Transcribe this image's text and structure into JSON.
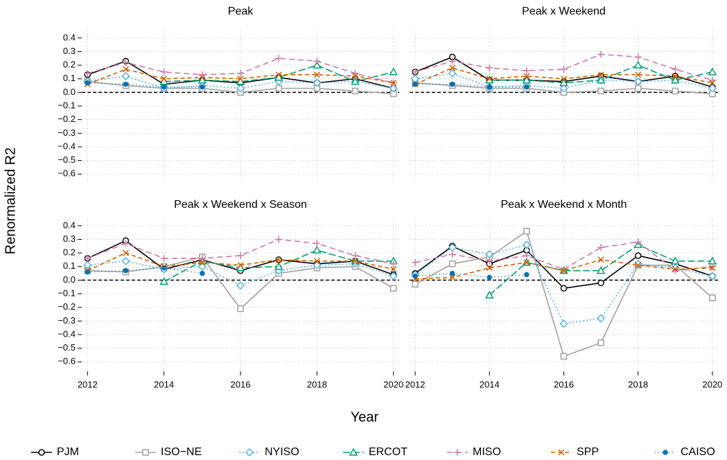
{
  "xlabel": "Year",
  "ylabel": "Renormalized R2",
  "chart_data": [
    {
      "type": "line",
      "title": "Peak",
      "x": [
        2012,
        2013,
        2014,
        2015,
        2016,
        2017,
        2018,
        2019,
        2020
      ],
      "xlim": [
        2011.85,
        2020.15
      ],
      "xticks": [
        2012,
        2014,
        2016,
        2018,
        2020
      ],
      "ylim": [
        -0.67,
        0.45
      ],
      "yticks": [
        {
          "value": -0.6,
          "label": "−0.6"
        },
        {
          "value": -0.5,
          "label": "−0.5"
        },
        {
          "value": -0.4,
          "label": "−0.4"
        },
        {
          "value": -0.3,
          "label": "−0.3"
        },
        {
          "value": -0.2,
          "label": "−0.2"
        },
        {
          "value": -0.1,
          "label": "−0.1"
        },
        {
          "value": 0,
          "label": "0.0"
        },
        0.1,
        0.2,
        0.3,
        0.4
      ],
      "grid": true,
      "series": [
        {
          "name": "PJM",
          "color": "#000000",
          "values": [
            0.13,
            0.23,
            0.06,
            0.09,
            0.07,
            0.11,
            0.07,
            0.1,
            0.03
          ]
        },
        {
          "name": "ISO−NE",
          "color": "#a0a0a0",
          "values": [
            0.08,
            0.05,
            0.03,
            0.03,
            0.0,
            0.03,
            0.03,
            0.01,
            -0.01
          ]
        },
        {
          "name": "NYISO",
          "color": "#56b4e9",
          "values": [
            0.08,
            0.12,
            0.03,
            0.05,
            0.03,
            0.08,
            0.07,
            0.08,
            0.03
          ]
        },
        {
          "name": "ERCOT",
          "color": "#009e73",
          "values": [
            null,
            null,
            0.08,
            0.09,
            0.08,
            0.11,
            0.2,
            0.08,
            0.15
          ]
        },
        {
          "name": "MISO",
          "color": "#cc79a7",
          "values": [
            0.14,
            0.22,
            0.15,
            0.13,
            0.14,
            0.25,
            0.23,
            0.14,
            0.07
          ]
        },
        {
          "name": "SPP",
          "color": "#d55e00",
          "values": [
            0.06,
            0.17,
            0.1,
            0.11,
            0.1,
            0.13,
            0.13,
            0.12,
            0.07
          ]
        },
        {
          "name": "CAISO",
          "color": "#0072b2",
          "values": [
            0.07,
            0.06,
            0.04,
            0.04,
            null,
            null,
            null,
            null,
            null
          ]
        }
      ]
    },
    {
      "type": "line",
      "title": "Peak x Weekend",
      "x": [
        2012,
        2013,
        2014,
        2015,
        2016,
        2017,
        2018,
        2019,
        2020
      ],
      "xlim": [
        2011.85,
        2020.15
      ],
      "xticks": [
        2012,
        2014,
        2016,
        2018,
        2020
      ],
      "ylim": [
        -0.67,
        0.45
      ],
      "yticks": [
        {
          "value": -0.6,
          "label": "−0.6"
        },
        {
          "value": -0.5,
          "label": "−0.5"
        },
        {
          "value": -0.4,
          "label": "−0.4"
        },
        {
          "value": -0.3,
          "label": "−0.3"
        },
        {
          "value": -0.2,
          "label": "−0.2"
        },
        {
          "value": -0.1,
          "label": "−0.1"
        },
        {
          "value": 0,
          "label": "0.0"
        },
        0.1,
        0.2,
        0.3,
        0.4
      ],
      "grid": true,
      "series": [
        {
          "name": "PJM",
          "color": "#000000",
          "values": [
            0.15,
            0.26,
            0.09,
            0.09,
            0.08,
            0.12,
            0.08,
            0.12,
            0.04
          ]
        },
        {
          "name": "ISO−NE",
          "color": "#a0a0a0",
          "values": [
            0.07,
            0.05,
            0.03,
            0.03,
            0.0,
            0.01,
            0.03,
            0.01,
            -0.01
          ]
        },
        {
          "name": "NYISO",
          "color": "#56b4e9",
          "values": [
            0.1,
            0.14,
            0.04,
            0.05,
            0.03,
            0.09,
            0.08,
            0.09,
            0.03
          ]
        },
        {
          "name": "ERCOT",
          "color": "#009e73",
          "values": [
            null,
            null,
            0.09,
            0.09,
            0.07,
            0.09,
            0.2,
            0.09,
            0.15
          ]
        },
        {
          "name": "MISO",
          "color": "#cc79a7",
          "values": [
            0.15,
            0.23,
            0.18,
            0.16,
            0.17,
            0.28,
            0.26,
            0.17,
            0.09
          ]
        },
        {
          "name": "SPP",
          "color": "#d55e00",
          "values": [
            0.06,
            0.18,
            0.1,
            0.12,
            0.1,
            0.13,
            0.13,
            0.12,
            0.07
          ]
        },
        {
          "name": "CAISO",
          "color": "#0072b2",
          "values": [
            0.06,
            0.06,
            0.04,
            0.04,
            null,
            null,
            null,
            null,
            null
          ]
        }
      ]
    },
    {
      "type": "line",
      "title": "Peak x Weekend x Season",
      "x": [
        2012,
        2013,
        2014,
        2015,
        2016,
        2017,
        2018,
        2019,
        2020
      ],
      "xlim": [
        2011.85,
        2020.15
      ],
      "xticks": [
        2012,
        2014,
        2016,
        2018,
        2020
      ],
      "ylim": [
        -0.67,
        0.45
      ],
      "yticks": [
        {
          "value": -0.6,
          "label": "−0.6"
        },
        {
          "value": -0.5,
          "label": "−0.5"
        },
        {
          "value": -0.4,
          "label": "−0.4"
        },
        {
          "value": -0.3,
          "label": "−0.3"
        },
        {
          "value": -0.2,
          "label": "−0.2"
        },
        {
          "value": -0.1,
          "label": "−0.1"
        },
        {
          "value": 0,
          "label": "0.0"
        },
        0.1,
        0.2,
        0.3,
        0.4
      ],
      "grid": true,
      "series": [
        {
          "name": "PJM",
          "color": "#000000",
          "values": [
            0.16,
            0.29,
            0.08,
            0.15,
            0.07,
            0.15,
            0.12,
            0.14,
            0.04
          ]
        },
        {
          "name": "ISO−NE",
          "color": "#a0a0a0",
          "values": [
            0.07,
            0.06,
            0.1,
            0.17,
            -0.21,
            0.05,
            0.09,
            0.1,
            -0.06
          ]
        },
        {
          "name": "NYISO",
          "color": "#56b4e9",
          "values": [
            0.11,
            0.14,
            0.08,
            0.1,
            -0.04,
            0.07,
            0.11,
            0.12,
            0.03
          ]
        },
        {
          "name": "ERCOT",
          "color": "#009e73",
          "values": [
            null,
            null,
            -0.01,
            0.14,
            0.09,
            0.1,
            0.22,
            0.14,
            0.14
          ]
        },
        {
          "name": "MISO",
          "color": "#cc79a7",
          "values": [
            0.16,
            0.27,
            0.16,
            0.16,
            0.18,
            0.3,
            0.27,
            0.18,
            0.12
          ]
        },
        {
          "name": "SPP",
          "color": "#d55e00",
          "values": [
            0.07,
            0.2,
            0.1,
            0.13,
            0.11,
            0.15,
            0.14,
            0.14,
            0.08
          ]
        },
        {
          "name": "CAISO",
          "color": "#0072b2",
          "values": [
            0.06,
            0.07,
            0.09,
            0.05,
            null,
            null,
            null,
            null,
            null
          ]
        }
      ]
    },
    {
      "type": "line",
      "title": "Peak x Weekend x Month",
      "x": [
        2012,
        2013,
        2014,
        2015,
        2016,
        2017,
        2018,
        2019,
        2020
      ],
      "xlim": [
        2011.85,
        2020.15
      ],
      "xticks": [
        2012,
        2014,
        2016,
        2018,
        2020
      ],
      "ylim": [
        -0.67,
        0.45
      ],
      "yticks": [
        {
          "value": -0.6,
          "label": "−0.6"
        },
        {
          "value": -0.5,
          "label": "−0.5"
        },
        {
          "value": -0.4,
          "label": "−0.4"
        },
        {
          "value": -0.3,
          "label": "−0.3"
        },
        {
          "value": -0.2,
          "label": "−0.2"
        },
        {
          "value": -0.1,
          "label": "−0.1"
        },
        {
          "value": 0,
          "label": "0.0"
        },
        0.1,
        0.2,
        0.3,
        0.4
      ],
      "grid": true,
      "series": [
        {
          "name": "PJM",
          "color": "#000000",
          "values": [
            0.05,
            0.25,
            0.12,
            0.22,
            -0.06,
            -0.02,
            0.18,
            0.12,
            0.03
          ]
        },
        {
          "name": "ISO−NE",
          "color": "#a0a0a0",
          "values": [
            -0.03,
            0.12,
            0.17,
            0.36,
            -0.56,
            -0.46,
            0.11,
            0.11,
            -0.13
          ]
        },
        {
          "name": "NYISO",
          "color": "#56b4e9",
          "values": [
            0.04,
            0.24,
            0.19,
            0.26,
            -0.32,
            -0.28,
            0.12,
            0.09,
            0.03
          ]
        },
        {
          "name": "ERCOT",
          "color": "#009e73",
          "values": [
            null,
            null,
            -0.11,
            0.13,
            0.07,
            0.07,
            0.26,
            0.14,
            0.14
          ]
        },
        {
          "name": "MISO",
          "color": "#cc79a7",
          "values": [
            0.13,
            0.19,
            0.14,
            0.18,
            0.08,
            0.24,
            0.28,
            0.07,
            0.1
          ]
        },
        {
          "name": "SPP",
          "color": "#d55e00",
          "values": [
            0.01,
            0.02,
            0.09,
            0.13,
            0.07,
            0.15,
            0.11,
            0.08,
            0.09
          ]
        },
        {
          "name": "CAISO",
          "color": "#0072b2",
          "values": [
            0.03,
            0.05,
            0.02,
            0.04,
            null,
            null,
            null,
            null,
            null
          ]
        }
      ]
    }
  ]
}
